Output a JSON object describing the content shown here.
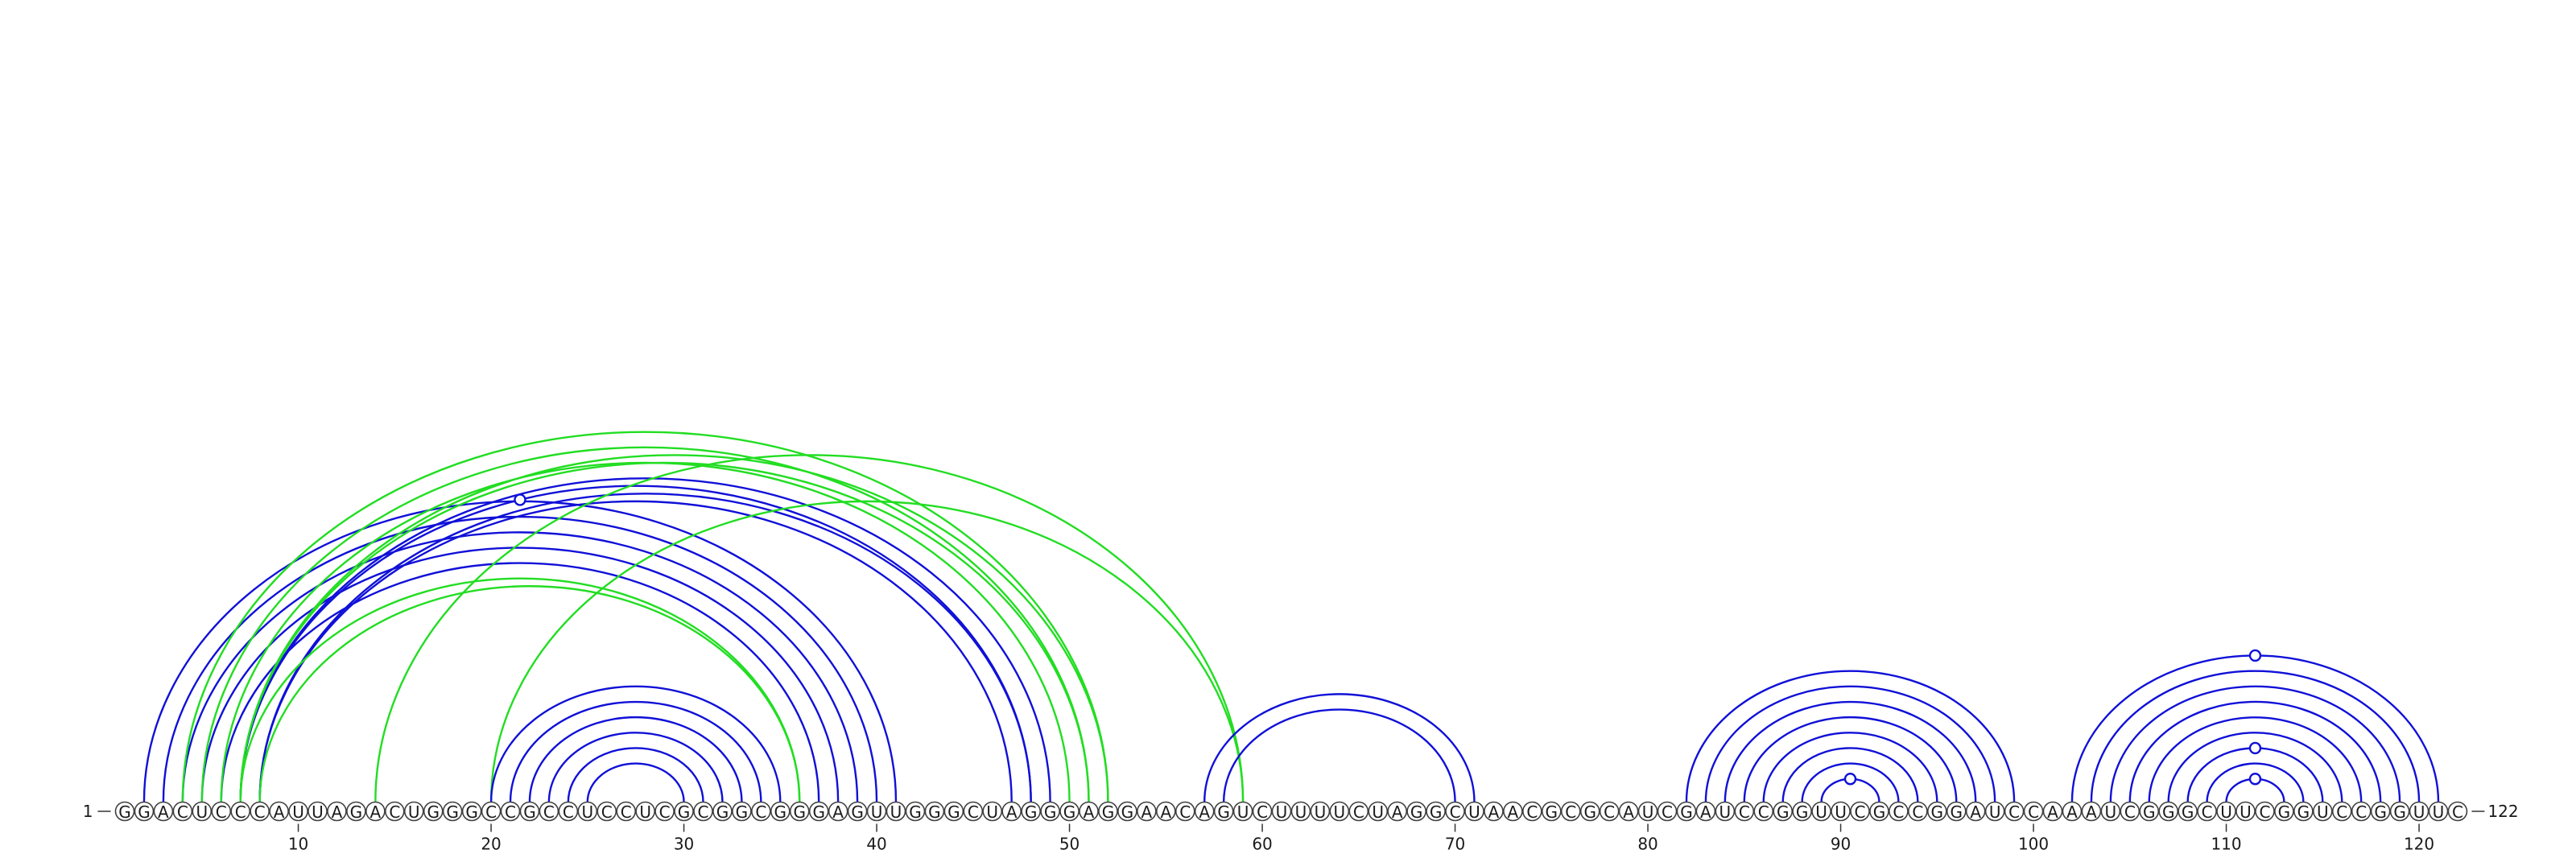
{
  "sequence": "GGACUCCCAUUAGACUGGGCCGCCUCCUCGCGGCGGGAGUUGGGCUAGGGAGGAACAGUCUUUUCUAGGCUAACGCGCAUCGAUCCGGUUCGCCGGAUCCAAAUCGGGCUUCGGUCCGGUUC",
  "start_label": "1",
  "end_label": "122",
  "ticks": [
    "10",
    "20",
    "30",
    "40",
    "50",
    "60",
    "70",
    "80",
    "90",
    "100",
    "110",
    "120"
  ],
  "colors": {
    "blue": "#1010d8",
    "green": "#22dd22",
    "outline": "#404040"
  },
  "pairs": [
    {
      "i": 2,
      "j": 41,
      "color": "blue"
    },
    {
      "i": 3,
      "j": 40,
      "color": "blue"
    },
    {
      "i": 4,
      "j": 39,
      "color": "blue"
    },
    {
      "i": 5,
      "j": 38,
      "color": "blue"
    },
    {
      "i": 6,
      "j": 37,
      "color": "blue"
    },
    {
      "i": 7,
      "j": 49,
      "color": "blue"
    },
    {
      "i": 7,
      "j": 48,
      "color": "blue"
    },
    {
      "i": 8,
      "j": 48,
      "color": "blue"
    },
    {
      "i": 8,
      "j": 47,
      "color": "blue"
    },
    {
      "i": 4,
      "j": 52,
      "color": "green"
    },
    {
      "i": 5,
      "j": 51,
      "color": "green"
    },
    {
      "i": 6,
      "j": 50,
      "color": "green"
    },
    {
      "i": 7,
      "j": 52,
      "color": "green"
    },
    {
      "i": 7,
      "j": 51,
      "color": "green"
    },
    {
      "i": 7,
      "j": 36,
      "color": "green"
    },
    {
      "i": 8,
      "j": 36,
      "color": "green"
    },
    {
      "i": 14,
      "j": 59,
      "color": "green"
    },
    {
      "i": 20,
      "j": 59,
      "color": "green"
    },
    {
      "i": 20,
      "j": 35,
      "color": "blue"
    },
    {
      "i": 21,
      "j": 34,
      "color": "blue"
    },
    {
      "i": 22,
      "j": 33,
      "color": "blue"
    },
    {
      "i": 23,
      "j": 32,
      "color": "blue"
    },
    {
      "i": 24,
      "j": 31,
      "color": "blue"
    },
    {
      "i": 25,
      "j": 30,
      "color": "blue"
    },
    {
      "i": 57,
      "j": 71,
      "color": "blue"
    },
    {
      "i": 58,
      "j": 70,
      "color": "blue"
    },
    {
      "i": 82,
      "j": 99,
      "color": "blue"
    },
    {
      "i": 83,
      "j": 98,
      "color": "blue"
    },
    {
      "i": 84,
      "j": 97,
      "color": "blue"
    },
    {
      "i": 85,
      "j": 96,
      "color": "blue"
    },
    {
      "i": 86,
      "j": 95,
      "color": "blue"
    },
    {
      "i": 87,
      "j": 94,
      "color": "blue"
    },
    {
      "i": 88,
      "j": 93,
      "color": "blue"
    },
    {
      "i": 89,
      "j": 92,
      "color": "blue"
    },
    {
      "i": 102,
      "j": 121,
      "color": "blue"
    },
    {
      "i": 103,
      "j": 120,
      "color": "blue"
    },
    {
      "i": 104,
      "j": 119,
      "color": "blue"
    },
    {
      "i": 105,
      "j": 118,
      "color": "blue"
    },
    {
      "i": 106,
      "j": 117,
      "color": "blue"
    },
    {
      "i": 107,
      "j": 116,
      "color": "blue"
    },
    {
      "i": 108,
      "j": 115,
      "color": "blue"
    },
    {
      "i": 109,
      "j": 114,
      "color": "blue"
    },
    {
      "i": 110,
      "j": 113,
      "color": "blue"
    }
  ],
  "markers": [
    {
      "pos": 21.5,
      "color": "blue",
      "on_pair": [
        7,
        48
      ]
    },
    {
      "pos": 90.5,
      "color": "blue",
      "on_pair": [
        89,
        92
      ]
    },
    {
      "pos": 111.5,
      "color": "blue",
      "on_pair": [
        102,
        121
      ]
    },
    {
      "pos": 111.5,
      "color": "blue",
      "on_pair": [
        108,
        115
      ]
    },
    {
      "pos": 111.5,
      "color": "blue",
      "on_pair": [
        110,
        113
      ]
    }
  ]
}
